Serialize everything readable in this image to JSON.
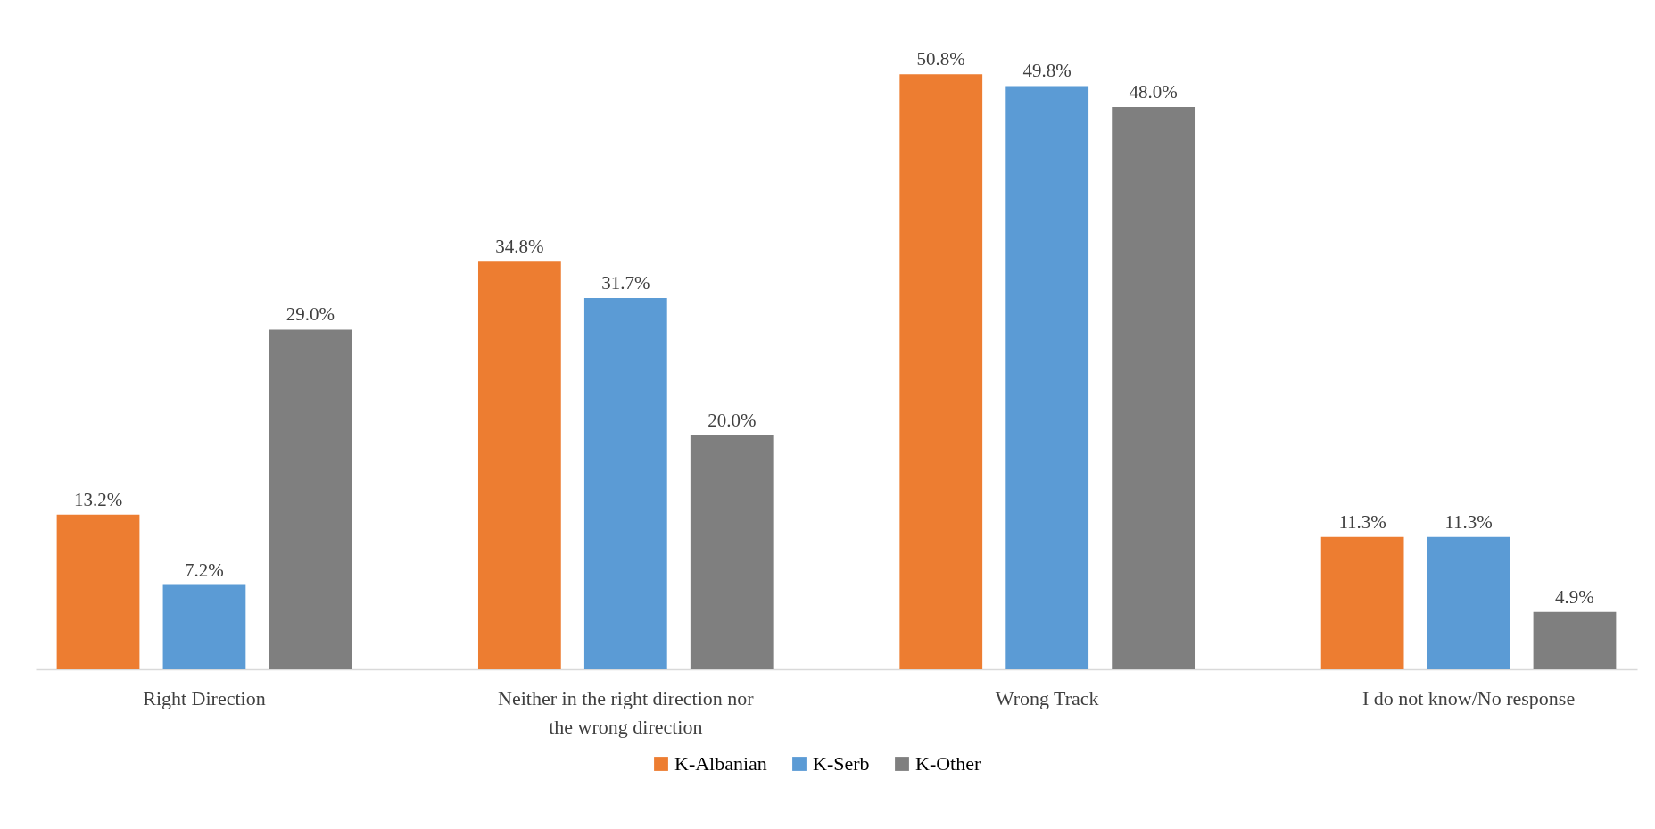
{
  "chart_data": {
    "type": "bar",
    "categories": [
      "Right Direction",
      "Neither in the right direction nor the wrong direction",
      "Wrong Track",
      "I do not know/No response"
    ],
    "series": [
      {
        "name": "K-Albanian",
        "color": "#ed7d31",
        "values": [
          13.2,
          34.8,
          50.8,
          11.3
        ],
        "value_labels": [
          "13.2%",
          "34.8%",
          "50.8%",
          "11.3%"
        ]
      },
      {
        "name": "K-Serb",
        "color": "#5b9bd5",
        "values": [
          7.2,
          31.7,
          49.8,
          11.3
        ],
        "value_labels": [
          "7.2%",
          "31.7%",
          "49.8%",
          "11.3%"
        ]
      },
      {
        "name": "K-Other",
        "color": "#7f7f7f",
        "values": [
          29.0,
          20.0,
          48.0,
          4.9
        ],
        "value_labels": [
          "29.0%",
          "20.0%",
          "48.0%",
          "4.9%"
        ]
      }
    ],
    "legend": "bottom",
    "grid": false
  }
}
